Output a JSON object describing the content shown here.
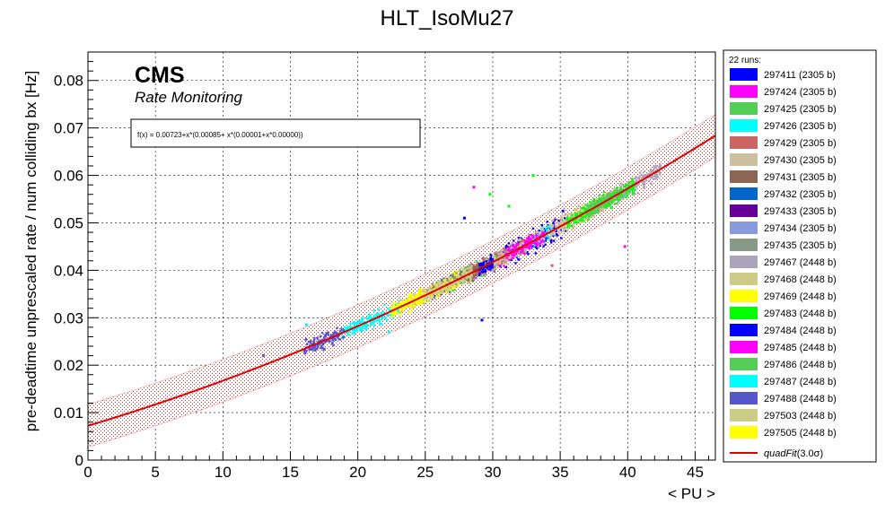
{
  "chart_data": {
    "type": "scatter",
    "title": "HLT_IsoMu27",
    "xlabel": "< PU >",
    "ylabel": "pre-deadtime unprescaled rate / num colliding bx [Hz]",
    "xlim": [
      0,
      46.5
    ],
    "ylim": [
      0,
      0.086
    ],
    "x_ticks": [
      0,
      5,
      10,
      15,
      20,
      25,
      30,
      35,
      40,
      45
    ],
    "y_ticks": [
      0,
      0.01,
      0.02,
      0.03,
      0.04,
      0.05,
      0.06,
      0.07,
      0.08
    ],
    "x_tick_labels": [
      "0",
      "5",
      "10",
      "15",
      "20",
      "25",
      "30",
      "35",
      "40",
      "45"
    ],
    "y_tick_labels": [
      "0",
      "0.01",
      "0.02",
      "0.03",
      "0.04",
      "0.05",
      "0.06",
      "0.07",
      "0.08"
    ],
    "grid": true,
    "cms_label": "CMS",
    "cms_sublabel": "Rate Monitoring",
    "fit_formula": "f(x) = 0.00723+x*(0.00085+ x*(0.00001+x*0.00000))",
    "fit": {
      "name": "quadFit(3.0σ)",
      "legend_prefix": "quad",
      "legend_main": "Fit",
      "legend_sigma": "(3.0σ)",
      "color": "#e00000",
      "coefficients": [
        0.00723,
        0.00085,
        1e-05,
        0.0
      ],
      "band_width": 0.0045
    },
    "legend_header": "22 runs:",
    "legend_placement": "right",
    "series": [
      {
        "name": "297411 (2305 b)",
        "color": "#0000ff",
        "x_range": [
          30.5,
          35.5
        ],
        "spread": 0.0016
      },
      {
        "name": "297424 (2305 b)",
        "color": "#ff00ff",
        "x_range": [
          28.5,
          31.5
        ],
        "spread": 0.0012
      },
      {
        "name": "297425 (2305 b)",
        "color": "#55cc55",
        "x_range": [
          26.5,
          30.5
        ],
        "spread": 0.0012
      },
      {
        "name": "297426 (2305 b)",
        "color": "#00ffff",
        "x_range": [
          33.0,
          34.5
        ],
        "spread": 0.001
      },
      {
        "name": "297429 (2305 b)",
        "color": "#cc6666",
        "x_range": [
          28.0,
          33.0
        ],
        "spread": 0.0012
      },
      {
        "name": "297430 (2305 b)",
        "color": "#ccc0a0",
        "x_range": [
          30.0,
          38.5
        ],
        "spread": 0.0012
      },
      {
        "name": "297431 (2305 b)",
        "color": "#8b6655",
        "x_range": [
          25.5,
          29.0
        ],
        "spread": 0.0011
      },
      {
        "name": "297432 (2305 b)",
        "color": "#0066cc",
        "x_range": [
          25.8,
          27.0
        ],
        "spread": 0.001
      },
      {
        "name": "297433 (2305 b)",
        "color": "#660099",
        "x_range": [
          25.5,
          26.8
        ],
        "spread": 0.001
      },
      {
        "name": "297434 (2305 b)",
        "color": "#8899dd",
        "x_range": [
          24.8,
          26.0
        ],
        "spread": 0.001
      },
      {
        "name": "297435 (2305 b)",
        "color": "#889988",
        "x_range": [
          25.5,
          27.5
        ],
        "spread": 0.001
      },
      {
        "name": "297467 (2448 b)",
        "color": "#aaa5bb",
        "x_range": [
          38.0,
          42.5
        ],
        "spread": 0.0012
      },
      {
        "name": "297468 (2448 b)",
        "color": "#cccc88",
        "x_range": [
          35.0,
          39.0
        ],
        "spread": 0.0012
      },
      {
        "name": "297469 (2448 b)",
        "color": "#ffff00",
        "x_range": [
          23.5,
          27.5
        ],
        "spread": 0.0011
      },
      {
        "name": "297483 (2448 b)",
        "color": "#00ff00",
        "x_range": [
          35.5,
          40.5
        ],
        "spread": 0.0012
      },
      {
        "name": "297484 (2448 b)",
        "color": "#0000ff",
        "x_range": [
          29.0,
          30.0
        ],
        "spread": 0.001
      },
      {
        "name": "297485 (2448 b)",
        "color": "#ff00ff",
        "x_range": [
          31.0,
          34.0
        ],
        "spread": 0.001
      },
      {
        "name": "297486 (2448 b)",
        "color": "#55cc55",
        "x_range": [
          37.0,
          39.5
        ],
        "spread": 0.0012
      },
      {
        "name": "297487 (2448 b)",
        "color": "#00ffff",
        "x_range": [
          18.8,
          23.2
        ],
        "spread": 0.0011
      },
      {
        "name": "297488 (2448 b)",
        "color": "#5555cc",
        "x_range": [
          16.0,
          19.0
        ],
        "spread": 0.0011
      },
      {
        "name": "297503 (2448 b)",
        "color": "#cccc88",
        "x_range": [
          23.0,
          28.5
        ],
        "spread": 0.0011
      },
      {
        "name": "297505 (2448 b)",
        "color": "#ffff00",
        "x_range": [
          22.5,
          24.8
        ],
        "spread": 0.001
      }
    ],
    "outliers": [
      {
        "x": 29.2,
        "y": 0.0295,
        "color": "#0000ff"
      },
      {
        "x": 22.3,
        "y": 0.027,
        "color": "#00ffff"
      },
      {
        "x": 16.2,
        "y": 0.0285,
        "color": "#00ffff"
      },
      {
        "x": 13.0,
        "y": 0.022,
        "color": "#5555cc"
      },
      {
        "x": 39.8,
        "y": 0.045,
        "color": "#ff00ff"
      },
      {
        "x": 34.4,
        "y": 0.041,
        "color": "#cc6666"
      },
      {
        "x": 29.8,
        "y": 0.056,
        "color": "#00ff00"
      },
      {
        "x": 28.6,
        "y": 0.0575,
        "color": "#ff00ff"
      },
      {
        "x": 41.2,
        "y": 0.0575,
        "color": "#aaa5bb"
      },
      {
        "x": 27.9,
        "y": 0.051,
        "color": "#0000ff"
      },
      {
        "x": 31.2,
        "y": 0.0535,
        "color": "#00ff00"
      },
      {
        "x": 35.2,
        "y": 0.0525,
        "color": "#0000ff"
      },
      {
        "x": 33.0,
        "y": 0.06,
        "color": "#00ff00"
      }
    ]
  }
}
